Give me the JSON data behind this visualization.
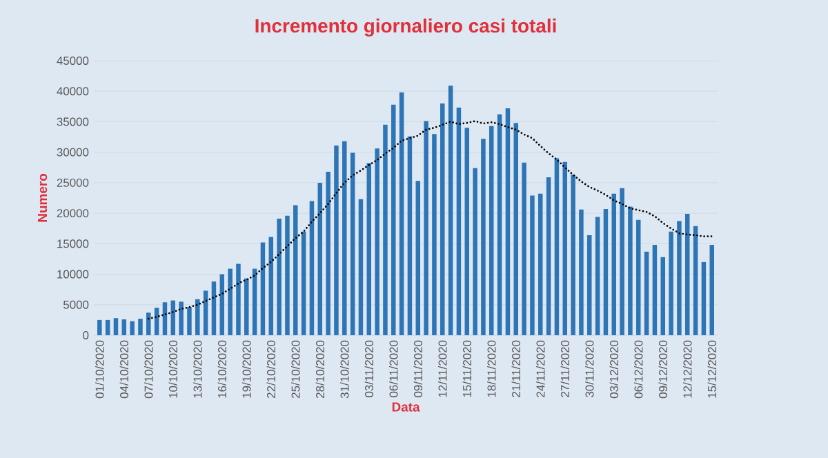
{
  "chart_data": {
    "type": "bar",
    "title": "Incremento giornaliero casi totali",
    "xlabel": "Data",
    "ylabel": "Numero",
    "categories": [
      "01/10/2020",
      null,
      null,
      "04/10/2020",
      null,
      null,
      "07/10/2020",
      null,
      null,
      "10/10/2020",
      null,
      null,
      "13/10/2020",
      null,
      null,
      "16/10/2020",
      null,
      null,
      "19/10/2020",
      null,
      null,
      "22/10/2020",
      null,
      null,
      "25/10/2020",
      null,
      null,
      "28/10/2020",
      null,
      null,
      "31/10/2020",
      null,
      null,
      "03/11/2020",
      null,
      null,
      "06/11/2020",
      null,
      null,
      "09/11/2020",
      null,
      null,
      "12/11/2020",
      null,
      null,
      "15/11/2020",
      null,
      null,
      "18/11/2020",
      null,
      null,
      "21/11/2020",
      null,
      null,
      "24/11/2020",
      null,
      null,
      "27/11/2020",
      null,
      null,
      "30/11/2020",
      null,
      null,
      "03/12/2020",
      null,
      null,
      "06/12/2020",
      null,
      null,
      "09/12/2020",
      null,
      null,
      "12/12/2020",
      null,
      null,
      "15/12/2020"
    ],
    "series": [
      {
        "color": "#2e75b6",
        "values": [
          2500,
          2500,
          2800,
          2600,
          2300,
          2700,
          3700,
          4500,
          5400,
          5700,
          5500,
          4600,
          5900,
          7300,
          8800,
          10000,
          10900,
          11700,
          9300,
          10900,
          15200,
          16100,
          19100,
          19600,
          21300,
          17000,
          22000,
          25000,
          26800,
          31100,
          31800,
          29900,
          22300,
          28200,
          30600,
          34500,
          37800,
          39800,
          32600,
          25300,
          35100,
          33000,
          38000,
          40900,
          37300,
          34000,
          27400,
          32200,
          34300,
          36200,
          37200,
          34800,
          28300,
          22900,
          23200,
          25900,
          29000,
          28400,
          26300,
          20600,
          16400,
          19400,
          20700,
          23200,
          24100,
          21100,
          18900,
          13700,
          14800,
          12800,
          17000,
          18700,
          19900,
          17900,
          12000,
          14800
        ]
      },
      {
        "type": "line",
        "color": "#000000",
        "line_style": "dotted",
        "marker": "none",
        "values": [
          null,
          null,
          null,
          null,
          null,
          null,
          2700,
          3000,
          3400,
          3800,
          4300,
          4600,
          5000,
          5600,
          6200,
          6800,
          7600,
          8500,
          9100,
          9800,
          11000,
          12000,
          13300,
          14600,
          15900,
          17000,
          18600,
          20000,
          21500,
          23300,
          25000,
          26200,
          27000,
          27900,
          28700,
          29800,
          30700,
          31900,
          32300,
          32700,
          33700,
          34000,
          34500,
          35000,
          34600,
          34800,
          35100,
          34700,
          34900,
          34600,
          34100,
          33700,
          32900,
          32300,
          31000,
          29800,
          28800,
          27500,
          26300,
          25200,
          24300,
          23700,
          23000,
          22100,
          21500,
          20800,
          20500,
          20200,
          19500,
          18400,
          17500,
          16700,
          16500,
          16400,
          16200,
          16200
        ]
      }
    ],
    "ylim": [
      0,
      45000
    ],
    "yticks": [
      0,
      5000,
      10000,
      15000,
      20000,
      25000,
      30000,
      35000,
      40000,
      45000
    ],
    "grid": "y"
  }
}
